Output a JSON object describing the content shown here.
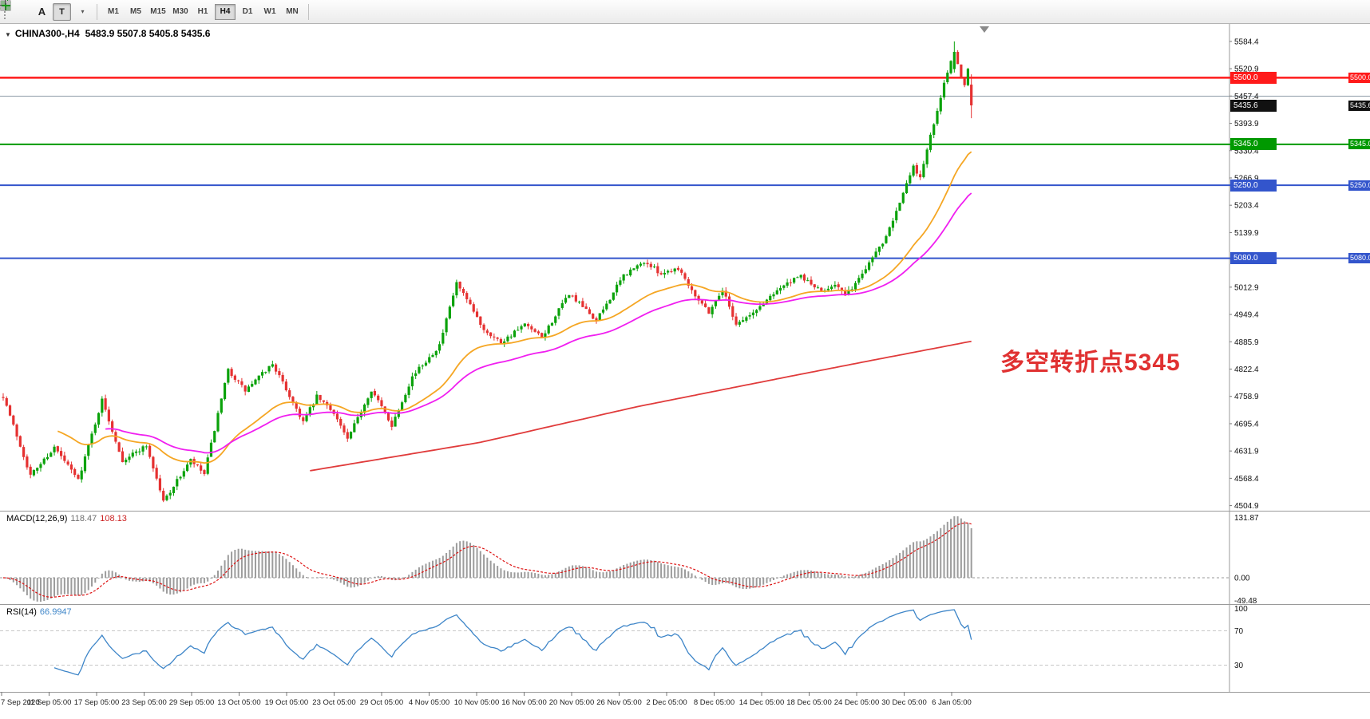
{
  "icons": {
    "symbol_dropdown": "▼",
    "caret": "▾"
  },
  "toolbar": {
    "tool_a_label": "A",
    "tool_t_label": "T",
    "timeframes": [
      "M1",
      "M5",
      "M15",
      "M30",
      "H1",
      "H4",
      "D1",
      "W1",
      "MN"
    ],
    "active_timeframe": "H4"
  },
  "chart": {
    "title": "CHINA300-,H4",
    "ohlc_text": "5483.9 5507.8 5405.8 5435.6",
    "annotation": "多空转折点5345",
    "hlines": [
      {
        "price": 5500.0,
        "color": "#ff1a1a",
        "width": 2.5
      },
      {
        "price": 5457.0,
        "color": "#8c9aa6",
        "width": 1
      },
      {
        "price": 5345.0,
        "color": "#009900",
        "width": 2
      },
      {
        "price": 5250.0,
        "color": "#3355cc",
        "width": 2
      },
      {
        "price": 5080.0,
        "color": "#3355cc",
        "width": 2
      }
    ],
    "badges": [
      {
        "text": "5500.0",
        "color": "#ff1a1a",
        "price": 5500.0
      },
      {
        "text": "5435.6",
        "color": "#111111",
        "price": 5435.6
      },
      {
        "text": "5345.0",
        "color": "#009900",
        "price": 5345.0
      },
      {
        "text": "5250.0",
        "color": "#3355cc",
        "price": 5250.0
      },
      {
        "text": "5080.0",
        "color": "#3355cc",
        "price": 5080.0
      }
    ]
  },
  "macd": {
    "name": "MACD(12,26,9)",
    "value_main": "118.47",
    "value_signal": "108.13",
    "axis": [
      "131.87",
      "0.00",
      "-49.48"
    ]
  },
  "rsi": {
    "name": "RSI(14)",
    "value": "66.9947",
    "axis": [
      "100",
      "70",
      "30"
    ],
    "levels": [
      70,
      30
    ]
  },
  "chart_data": {
    "type": "candlestick",
    "symbol": "CHINA300-",
    "timeframe": "H4",
    "current_bar": {
      "open": 5483.9,
      "high": 5507.8,
      "low": 5405.8,
      "close": 5435.6
    },
    "price_range": [
      4493,
      5625
    ],
    "horizontal_levels": [
      5500.0,
      5457.0,
      5345.0,
      5250.0,
      5080.0
    ],
    "candles_count": 285,
    "candle_spacing": 4.27,
    "noise": 10,
    "wick": 9,
    "seed": 7,
    "anchors": [
      [
        0,
        4760
      ],
      [
        8,
        4575
      ],
      [
        15,
        4640
      ],
      [
        22,
        4565
      ],
      [
        29,
        4750
      ],
      [
        35,
        4610
      ],
      [
        42,
        4645
      ],
      [
        47,
        4515
      ],
      [
        55,
        4610
      ],
      [
        59,
        4578
      ],
      [
        66,
        4820
      ],
      [
        71,
        4772
      ],
      [
        79,
        4835
      ],
      [
        88,
        4700
      ],
      [
        92,
        4758
      ],
      [
        97,
        4722
      ],
      [
        101,
        4658
      ],
      [
        108,
        4775
      ],
      [
        114,
        4692
      ],
      [
        120,
        4805
      ],
      [
        128,
        4878
      ],
      [
        133,
        5022
      ],
      [
        141,
        4915
      ],
      [
        146,
        4885
      ],
      [
        153,
        4925
      ],
      [
        158,
        4895
      ],
      [
        166,
        4998
      ],
      [
        174,
        4935
      ],
      [
        182,
        5040
      ],
      [
        188,
        5072
      ],
      [
        193,
        5045
      ],
      [
        198,
        5058
      ],
      [
        203,
        4995
      ],
      [
        207,
        4955
      ],
      [
        211,
        5008
      ],
      [
        215,
        4928
      ],
      [
        220,
        4952
      ],
      [
        227,
        5008
      ],
      [
        234,
        5038
      ],
      [
        240,
        5002
      ],
      [
        244,
        5022
      ],
      [
        247,
        4992
      ],
      [
        251,
        5032
      ],
      [
        255,
        5085
      ],
      [
        258,
        5118
      ],
      [
        261,
        5172
      ],
      [
        265,
        5252
      ],
      [
        267,
        5292
      ],
      [
        269,
        5268
      ],
      [
        271,
        5335
      ],
      [
        273,
        5392
      ],
      [
        275,
        5452
      ],
      [
        277,
        5515
      ],
      [
        279,
        5558
      ],
      [
        281,
        5502
      ],
      [
        282,
        5482
      ],
      [
        283,
        5520
      ],
      [
        284,
        5435.6
      ]
    ],
    "forced": {
      "279": [
        5520,
        5584.4,
        5512,
        5560
      ],
      "284": [
        5483.9,
        5507.8,
        5405.8,
        5435.6
      ]
    },
    "moving_averages": [
      {
        "name": "fast",
        "method": "ema",
        "period": 34,
        "color": "#f5a623"
      },
      {
        "name": "medium",
        "method": "ema",
        "period": 60,
        "color": "#f01ff0"
      },
      {
        "name": "slow",
        "method": "anchored",
        "color": "#e03b3b",
        "anchors": [
          [
            90,
            4586
          ],
          [
            140,
            4652
          ],
          [
            186,
            4735
          ],
          [
            233,
            4809
          ],
          [
            257,
            4846
          ],
          [
            284,
            4887
          ]
        ]
      }
    ],
    "indicators": {
      "macd": {
        "fast": 12,
        "slow": 26,
        "signal": 9,
        "current_main": 118.47,
        "current_signal": 108.13
      },
      "rsi": {
        "period": 14,
        "current": 66.9947,
        "levels": [
          70,
          30
        ]
      }
    },
    "price_axis_labels": [
      "5584.4",
      "5520.9",
      "5457.4",
      "5393.9",
      "5330.4",
      "5266.9",
      "5203.4",
      "5139.9",
      "5012.9",
      "4949.4",
      "4885.9",
      "4822.4",
      "4758.9",
      "4695.4",
      "4631.9",
      "4568.4",
      "4504.9"
    ],
    "time_labels": [
      "7 Sep 2020",
      "11 Sep 05:00",
      "17 Sep 05:00",
      "23 Sep 05:00",
      "29 Sep 05:00",
      "13 Oct 05:00",
      "19 Oct 05:00",
      "23 Oct 05:00",
      "29 Oct 05:00",
      "4 Nov 05:00",
      "10 Nov 05:00",
      "16 Nov 05:00",
      "20 Nov 05:00",
      "26 Nov 05:00",
      "2 Dec 05:00",
      "8 Dec 05:00",
      "14 Dec 05:00",
      "18 Dec 05:00",
      "24 Dec 05:00",
      "30 Dec 05:00",
      "6 Jan 05:00"
    ],
    "time_spacing": 59.5,
    "colors": {
      "up": "#0aa20a",
      "down": "#e53131",
      "macd_hist": "#9c9c9c",
      "macd_signal": "#dd1111",
      "rsi_line": "#3d85c8"
    }
  }
}
